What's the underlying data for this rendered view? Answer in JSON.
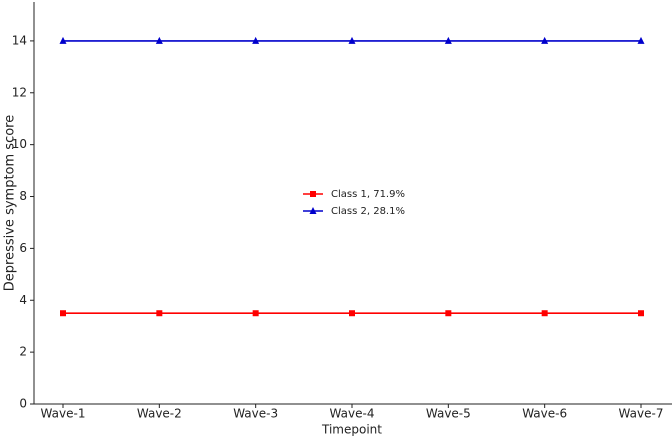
{
  "chart_data": {
    "type": "line",
    "x_label": "Timepoint",
    "y_label": "Depressive symptom score",
    "categories": [
      "Wave-1",
      "Wave-2",
      "Wave-3",
      "Wave-4",
      "Wave-5",
      "Wave-6",
      "Wave-7"
    ],
    "series": [
      {
        "name": "Class 1, 71.9%",
        "color": "#ff0000",
        "marker": "square",
        "values": [
          3.5,
          3.5,
          3.5,
          3.5,
          3.5,
          3.5,
          3.5
        ]
      },
      {
        "name": "Class 2, 28.1%",
        "color": "#0000cc",
        "marker": "triangle",
        "values": [
          14,
          14,
          14,
          14,
          14,
          14,
          14
        ]
      }
    ],
    "ylim": [
      0,
      15.5
    ],
    "yticks": [
      0,
      2,
      4,
      6,
      8,
      10,
      12,
      14
    ],
    "grid": false,
    "legend": "center"
  }
}
